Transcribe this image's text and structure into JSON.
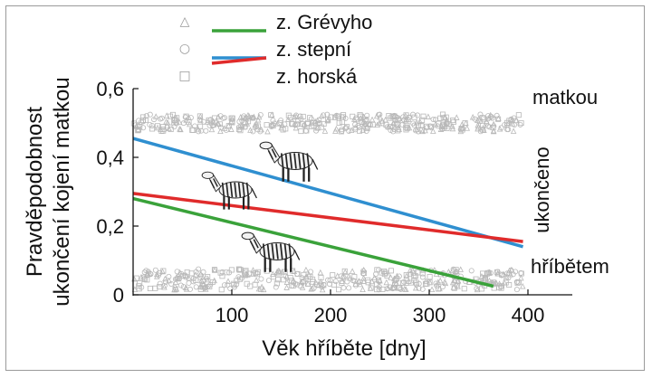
{
  "chart_data": {
    "type": "scatter",
    "title": "",
    "xlabel": "Věk hříběte [dny]",
    "ylabel_line1": "Pravděpodobnost",
    "ylabel_line2": "ukončení kojení matkou",
    "xlim": [
      0,
      450
    ],
    "ylim": [
      0,
      0.6
    ],
    "x_ticks": [
      100,
      200,
      300,
      400
    ],
    "x_tick_labels": [
      "100",
      "200",
      "300",
      "400"
    ],
    "y_ticks": [
      0,
      0.2,
      0.4,
      0.6
    ],
    "y_tick_labels": [
      "0",
      "0,2",
      "0,4",
      "0,6"
    ],
    "right_labels": {
      "top": "matkou",
      "middle": "ukončeno",
      "bottom": "hříbětem"
    },
    "legend_position": "top-center",
    "series": [
      {
        "name": "z. Grévyho",
        "marker": "triangle",
        "color": "#3aa23a",
        "line": {
          "x": [
            0,
            365
          ],
          "y": [
            0.28,
            0.025
          ]
        }
      },
      {
        "name": "z. stepní",
        "marker": "circle",
        "color": "#2f8fd0",
        "line": {
          "x": [
            0,
            395
          ],
          "y": [
            0.455,
            0.14
          ]
        }
      },
      {
        "name": "z. horská",
        "marker": "square",
        "color": "#e02b2b",
        "line": {
          "x": [
            0,
            395
          ],
          "y": [
            0.295,
            0.155
          ]
        }
      }
    ],
    "legend_marker_glyphs": [
      "△",
      "○",
      "□"
    ],
    "point_bands": [
      {
        "y_center": 0.5,
        "y_spread": 0.025,
        "x_range": [
          0,
          395
        ]
      },
      {
        "y_center": 0.045,
        "y_spread": 0.03,
        "x_range": [
          0,
          395
        ]
      }
    ],
    "point_color": "#b8b8b8"
  }
}
